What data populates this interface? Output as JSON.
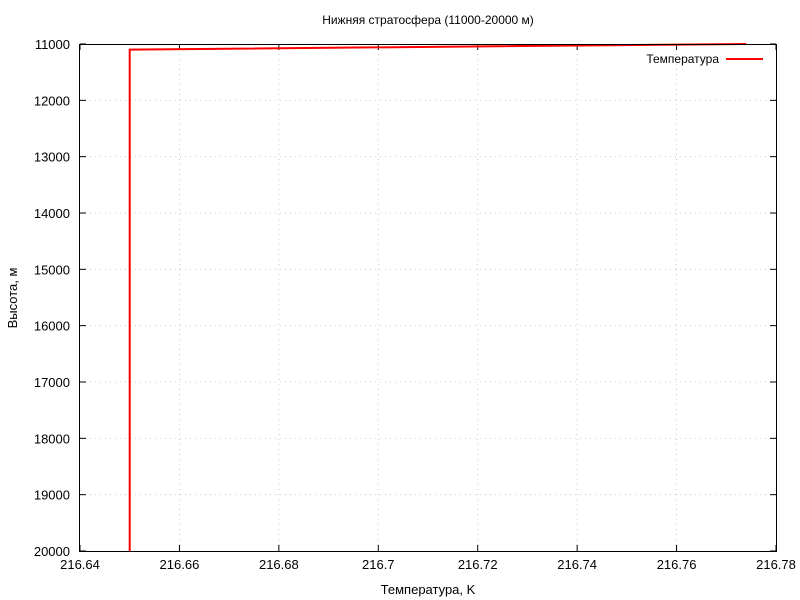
{
  "chart_data": {
    "type": "line",
    "title": "Нижняя стратосфера (11000-20000 м)",
    "xlabel": "Температура, K",
    "ylabel": "Высота, м",
    "xlim": [
      216.64,
      216.78
    ],
    "ylim": [
      20000,
      11000
    ],
    "x_ticks": [
      "216.64",
      "216.66",
      "216.68",
      "216.7",
      "216.72",
      "216.74",
      "216.76",
      "216.78"
    ],
    "y_ticks": [
      "11000",
      "12000",
      "13000",
      "14000",
      "15000",
      "16000",
      "17000",
      "18000",
      "19000",
      "20000"
    ],
    "grid": true,
    "legend_position": "top-right",
    "series": [
      {
        "name": "Температура",
        "color": "#ff0000",
        "points": [
          {
            "x": 216.774,
            "y": 11000
          },
          {
            "x": 216.65,
            "y": 11100
          },
          {
            "x": 216.65,
            "y": 20000
          }
        ]
      }
    ]
  }
}
